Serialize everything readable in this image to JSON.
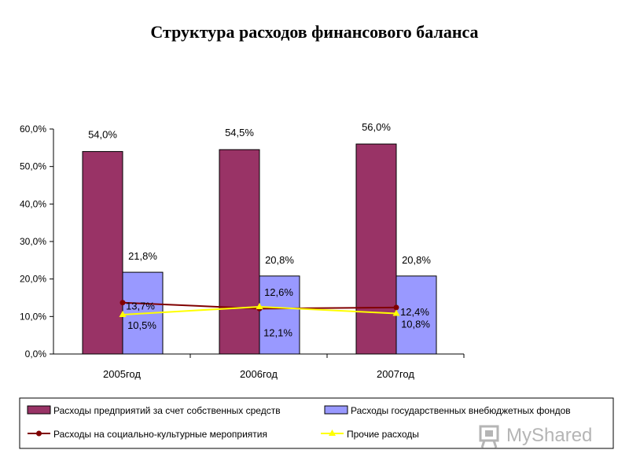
{
  "title": "Структура расходов финансового баланса",
  "watermark": "MyShared",
  "colors": {
    "enterprise": "#993366",
    "state_funds": "#9999ff",
    "social": "#800000",
    "other": "#ffff00"
  },
  "chart_data": {
    "type": "bar",
    "categories": [
      "2005год",
      "2006год",
      "2007год"
    ],
    "ylim": [
      0,
      60
    ],
    "y_ticks": [
      "0,0%",
      "10,0%",
      "20,0%",
      "30,0%",
      "40,0%",
      "50,0%",
      "60,0%"
    ],
    "series": [
      {
        "name": "Расходы предприятий за счет собственных средств",
        "type": "bar",
        "values": [
          54.0,
          54.5,
          56.0
        ],
        "labels": [
          "54,0%",
          "54,5%",
          "56,0%"
        ]
      },
      {
        "name": "Расходы государственных внебюджетных фондов",
        "type": "bar",
        "values": [
          21.8,
          20.8,
          20.8
        ],
        "labels": [
          "21,8%",
          "20,8%",
          "20,8%"
        ]
      },
      {
        "name": "Расходы на социально-культурные мероприятия",
        "type": "line",
        "values": [
          13.7,
          12.1,
          12.4
        ],
        "labels": [
          "13,7%",
          "12,1%",
          "12,4%"
        ]
      },
      {
        "name": "Прочие расходы",
        "type": "line",
        "values": [
          10.5,
          12.6,
          10.8
        ],
        "labels": [
          "10,5%",
          "12,6%",
          "10,8%"
        ]
      }
    ],
    "legend_position": "bottom",
    "grid": false
  }
}
